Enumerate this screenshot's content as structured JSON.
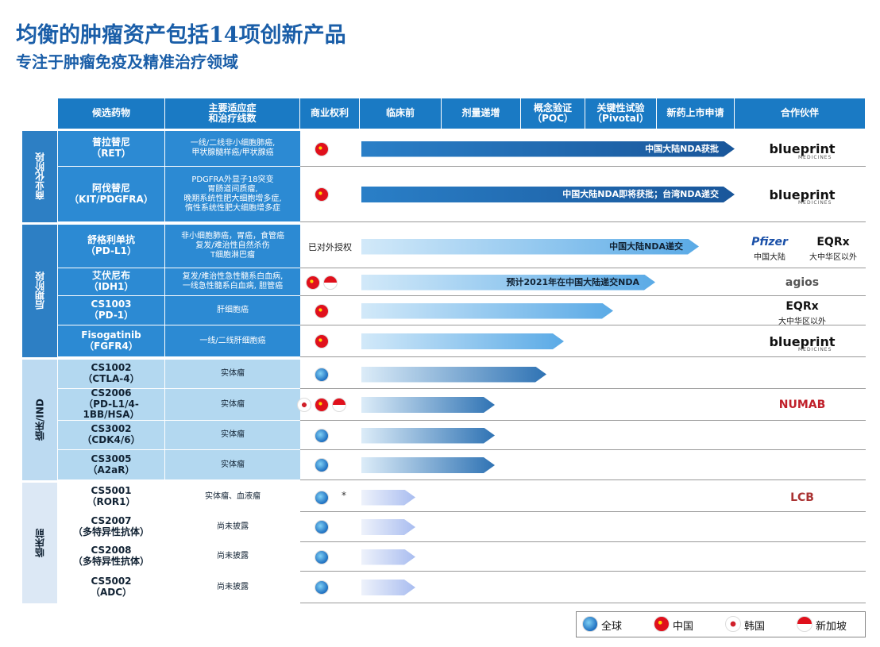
{
  "header": {
    "title": "均衡的肿瘤资产包括14项创新产品",
    "subtitle": "专注于肿瘤免疫及精准治疗领域"
  },
  "table": {
    "columns": [
      "候选药物",
      "主要适应症\n和治疗线数",
      "商业权利",
      "临床前",
      "剂量递增",
      "概念验证\n（POC）",
      "关键性试验\n（Pivotal）",
      "新药上市申请",
      "合作伙伴"
    ],
    "groups": [
      {
        "label": "商业化阶段",
        "rows": [
          {
            "drug": "普拉替尼\n（RET）",
            "indication": "一线/二线非小细胞肺癌,\n甲状腺髓样癌/甲状腺癌",
            "bar_label": "中国大陆NDA获批",
            "partners": [
              {
                "name": "blueprint",
                "sub": "MEDICINES"
              }
            ]
          },
          {
            "drug": "阿伐替尼\n（KIT/PDGFRA）",
            "indication": "PDGFRA外显子18突变\n胃肠道间质瘤,\n晚期系统性肥大细胞增多症,\n惰性系统性肥大细胞增多症",
            "bar_label": "中国大陆NDA即将获批；台湾NDA递交",
            "partners": [
              {
                "name": "blueprint",
                "sub": "MEDICINES"
              }
            ]
          }
        ]
      },
      {
        "label": "后期阶段",
        "rows": [
          {
            "drug": "舒格利单抗\n（PD-L1）",
            "indication": "非小细胞肺癌，胃癌，食管癌\n复发/难治性自然杀伤\nT细胞淋巴瘤",
            "rights": "已对外授权",
            "bar_label": "中国大陆NDA递交",
            "partners": [
              {
                "name": "Pfizer",
                "caption": "中国大陆"
              },
              {
                "name": "EQRx",
                "caption": "大中华区以外"
              }
            ]
          },
          {
            "drug": "艾伏尼布\n（IDH1）",
            "indication": "复发/难治性急性髓系白血病,\n一线急性髓系白血病, 胆管癌",
            "bar_label": "预计2021年在中国大陆递交NDA",
            "partners": [
              {
                "name": "agios"
              }
            ]
          },
          {
            "drug": "CS1003\n（PD-1）",
            "indication": "肝细胞癌",
            "partners": [
              {
                "name": "EQRx",
                "caption": "大中华区以外"
              }
            ]
          },
          {
            "drug": "Fisogatinib\n（FGFR4）",
            "indication": "一线/二线肝细胞癌",
            "partners": [
              {
                "name": "blueprint",
                "sub": "MEDICINES"
              }
            ]
          }
        ]
      },
      {
        "label": "临床/IND",
        "rows": [
          {
            "drug": "CS1002\n（CTLA-4）",
            "indication": "实体瘤"
          },
          {
            "drug": "CS2006\n（PD-L1/4-1BB/HSA）",
            "indication": "实体瘤",
            "partners": [
              {
                "name": "NUMAB"
              }
            ]
          },
          {
            "drug": "CS3002\n（CDK4/6）",
            "indication": "实体瘤"
          },
          {
            "drug": "CS3005\n（A2aR）",
            "indication": "实体瘤"
          }
        ]
      },
      {
        "label": "临床前",
        "rows": [
          {
            "drug": "CS5001\n（ROR1）",
            "indication": "实体瘤、血液瘤",
            "note": "*",
            "partners": [
              {
                "name": "LCB"
              }
            ]
          },
          {
            "drug": "CS2007\n（多特异性抗体）",
            "indication": "尚未披露"
          },
          {
            "drug": "CS2008\n（多特异性抗体）",
            "indication": "尚未披露"
          },
          {
            "drug": "CS5002\n（ADC）",
            "indication": "尚未披露"
          }
        ]
      }
    ]
  },
  "legend": [
    "全球",
    "中国",
    "韩国",
    "新加坡"
  ]
}
